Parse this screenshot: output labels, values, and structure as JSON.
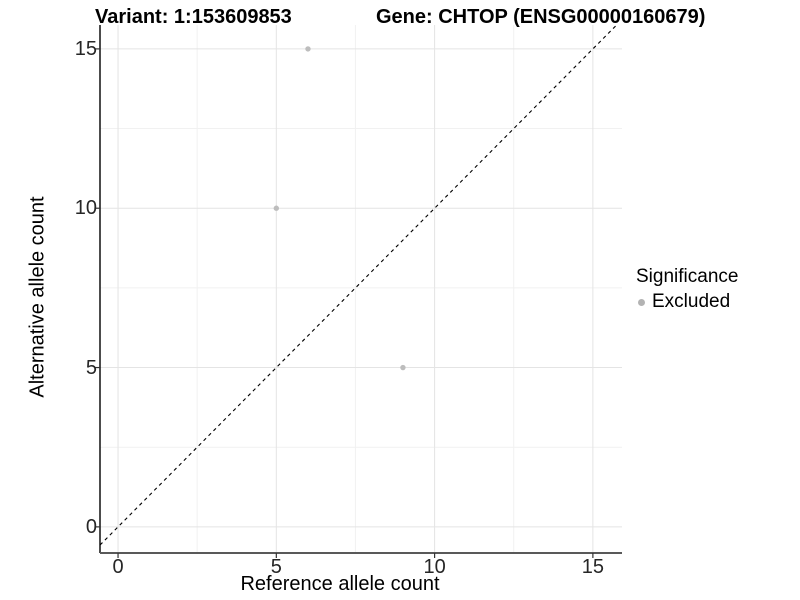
{
  "chart_data": {
    "type": "scatter",
    "title_left": "Variant: 1:153609853",
    "title_right": "Gene: CHTOP (ENSG00000160679)",
    "xlabel": "Reference allele count",
    "ylabel": "Alternative allele count",
    "xticks": [
      0,
      5,
      10,
      15
    ],
    "yticks": [
      0,
      5,
      10,
      15
    ],
    "xlim": [
      -0.57,
      15.92
    ],
    "ylim": [
      -0.82,
      15.75
    ],
    "grid": {
      "major": true,
      "minor": true
    },
    "reference_line": {
      "kind": "identity y=x",
      "style": "dashed",
      "color": "#000000"
    },
    "series": [
      {
        "name": "Excluded",
        "color": "#bdbdbd",
        "points": [
          {
            "x": 6,
            "y": 15
          },
          {
            "x": 5,
            "y": 10
          },
          {
            "x": 9,
            "y": 5
          }
        ]
      }
    ],
    "legend": {
      "title": "Significance",
      "position": "right",
      "items": [
        {
          "label": "Excluded",
          "color": "#b3b3b3"
        }
      ]
    },
    "colors": {
      "grid_major": "#e4e4e4",
      "grid_minor": "#f1f1f1",
      "axis_left": "#000000",
      "axis_bottom": "#595959",
      "tick_mark": "#333333",
      "point": "#bdbdbd"
    }
  }
}
